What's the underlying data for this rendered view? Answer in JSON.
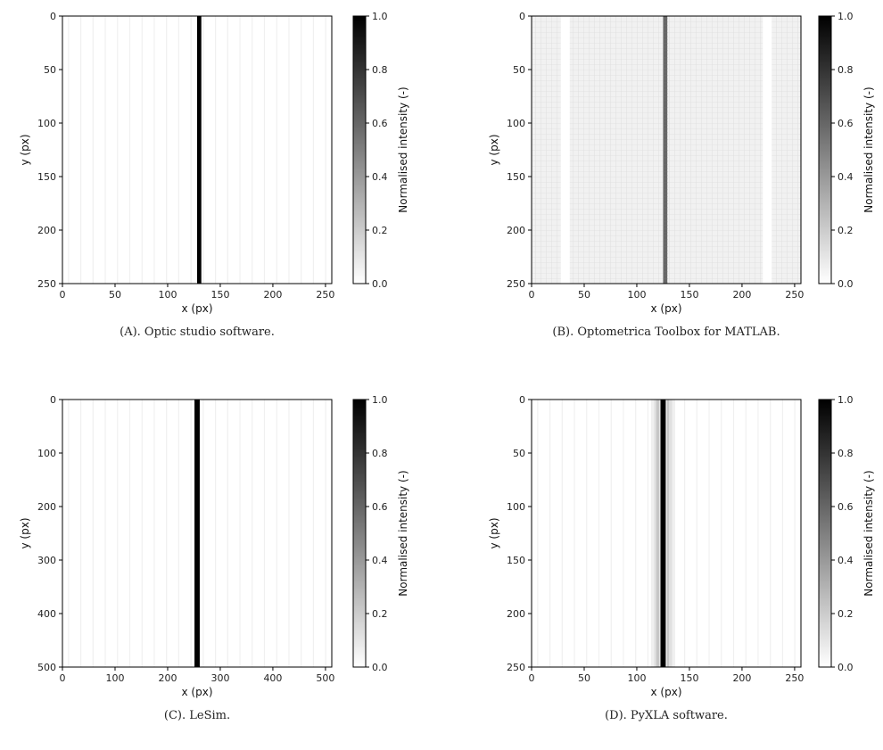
{
  "colorbar_defaults": {
    "label": "Normalised intensity (-)",
    "ticks": [
      "0.0",
      "0.2",
      "0.4",
      "0.6",
      "0.8",
      "1.0"
    ]
  },
  "chart_data": [
    {
      "type": "heatmap",
      "caption": "(A). Optic studio software.",
      "xlabel": "x (px)",
      "ylabel": "y (px)",
      "xlim": [
        0,
        256
      ],
      "ylim": [
        250,
        0
      ],
      "xticks": [
        0,
        50,
        100,
        150,
        200,
        250
      ],
      "yticks": [
        0,
        50,
        100,
        150,
        200,
        250
      ],
      "colorbar": {
        "label": "Normalised intensity (-)",
        "range": [
          0.0,
          1.0
        ],
        "ticks": [
          0.0,
          0.2,
          0.4,
          0.6,
          0.8,
          1.0
        ],
        "colormap": "white-to-black"
      },
      "line_center_x": 130,
      "line_width_x": 4,
      "peak_intensity": 1.0,
      "background": "faint vertical stripes"
    },
    {
      "type": "heatmap",
      "caption": "(B). Optometrica Toolbox for MATLAB.",
      "xlabel": "x (px)",
      "ylabel": "y (px)",
      "xlim": [
        0,
        256
      ],
      "ylim": [
        250,
        0
      ],
      "xticks": [
        0,
        50,
        100,
        150,
        200,
        250
      ],
      "yticks": [
        0,
        50,
        100,
        150,
        200,
        250
      ],
      "colorbar": {
        "label": "Normalised intensity (-)",
        "range": [
          0.0,
          1.0
        ],
        "ticks": [
          0.0,
          0.2,
          0.4,
          0.6,
          0.8,
          1.0
        ],
        "colormap": "white-to-black"
      },
      "line_center_x": 127,
      "line_width_x": 4,
      "peak_intensity": 0.6,
      "background": "light grey grid with white bands near x=32 and x=224"
    },
    {
      "type": "heatmap",
      "caption": "(C). LeSim.",
      "xlabel": "x (px)",
      "ylabel": "y (px)",
      "xlim": [
        0,
        512
      ],
      "ylim": [
        500,
        0
      ],
      "xticks": [
        0,
        100,
        200,
        300,
        400,
        500
      ],
      "yticks": [
        0,
        100,
        200,
        300,
        400,
        500
      ],
      "colorbar": {
        "label": "Normalised intensity (-)",
        "range": [
          0.0,
          1.0
        ],
        "ticks": [
          0.0,
          0.2,
          0.4,
          0.6,
          0.8,
          1.0
        ],
        "colormap": "white-to-black"
      },
      "line_center_x": 256,
      "line_width_x": 10,
      "peak_intensity": 1.0,
      "background": "faint vertical stripes"
    },
    {
      "type": "heatmap",
      "caption": "(D). PyXLA software.",
      "xlabel": "x (px)",
      "ylabel": "y (px)",
      "xlim": [
        0,
        256
      ],
      "ylim": [
        250,
        0
      ],
      "xticks": [
        0,
        50,
        100,
        150,
        200,
        250
      ],
      "yticks": [
        0,
        50,
        100,
        150,
        200,
        250
      ],
      "colorbar": {
        "label": "Normalised intensity (-)",
        "range": [
          0.0,
          1.0
        ],
        "ticks": [
          0.0,
          0.2,
          0.4,
          0.6,
          0.8,
          1.0
        ],
        "colormap": "white-to-black"
      },
      "line_center_x": 125,
      "line_width_x": 5,
      "peak_intensity": 1.0,
      "background": "faint vertical stripes with soft halo around line"
    }
  ]
}
